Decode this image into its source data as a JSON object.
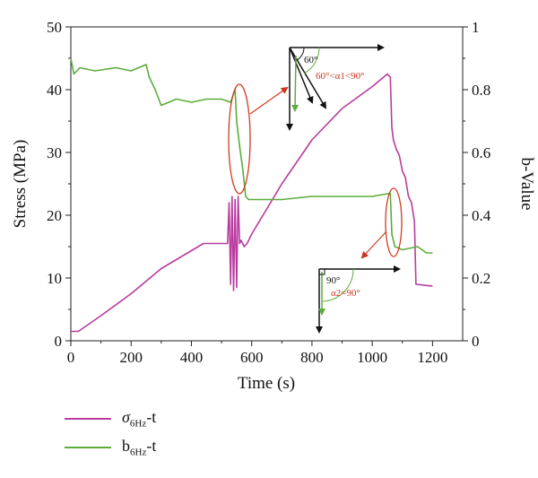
{
  "chart_data": {
    "type": "line",
    "title": "",
    "xlabel": "Time (s)",
    "ylabel_left": "Stress (MPa)",
    "ylabel_right": "b-Value",
    "xlim": [
      0,
      1300
    ],
    "ylim_left": [
      0,
      50
    ],
    "ylim_right": [
      0,
      1
    ],
    "xticks": [
      "0",
      "200",
      "400",
      "600",
      "800",
      "1000",
      "1200"
    ],
    "yticks_left": [
      "0",
      "10",
      "20",
      "30",
      "40",
      "50"
    ],
    "yticks_right": [
      "0",
      "0.2",
      "0.4",
      "0.6",
      "0.8",
      "1"
    ],
    "grid": false,
    "legend_position": "bottom-left",
    "series": [
      {
        "name": "σ6Hz-t",
        "axis": "left",
        "color": "#b83c9f",
        "x": [
          0,
          25,
          100,
          200,
          300,
          440,
          520,
          525,
          530,
          535,
          540,
          545,
          550,
          555,
          560,
          565,
          575,
          585,
          600,
          700,
          800,
          900,
          1000,
          1050,
          1060,
          1065,
          1070,
          1080,
          1090,
          1100,
          1110,
          1120,
          1130,
          1140,
          1145,
          1200
        ],
        "values": [
          1.5,
          1.5,
          4.0,
          7.5,
          11.5,
          15.5,
          15.5,
          22.0,
          9.0,
          23.0,
          8.0,
          22.5,
          8.5,
          23.0,
          15.5,
          16.0,
          15.0,
          15.5,
          17.0,
          25.0,
          32.0,
          37.0,
          40.5,
          42.5,
          42.0,
          34.0,
          32.0,
          30.5,
          29.5,
          27.0,
          26.0,
          23.0,
          22.0,
          19.0,
          9.0,
          8.7
        ]
      },
      {
        "name": "b6Hz-t",
        "axis": "right",
        "color": "#5aad3c",
        "x": [
          0,
          10,
          30,
          80,
          150,
          200,
          250,
          260,
          280,
          300,
          350,
          400,
          450,
          500,
          530,
          545,
          550,
          560,
          570,
          580,
          590,
          600,
          700,
          800,
          900,
          1000,
          1060,
          1065,
          1075,
          1100,
          1150,
          1180,
          1200
        ],
        "values": [
          0.9,
          0.85,
          0.87,
          0.86,
          0.87,
          0.86,
          0.88,
          0.84,
          0.8,
          0.75,
          0.77,
          0.76,
          0.77,
          0.77,
          0.76,
          0.8,
          0.7,
          0.62,
          0.55,
          0.46,
          0.45,
          0.45,
          0.45,
          0.46,
          0.46,
          0.46,
          0.47,
          0.34,
          0.3,
          0.29,
          0.3,
          0.28,
          0.28
        ]
      }
    ],
    "annotations": [
      {
        "angle_label": "60°",
        "range_label": "60°<α1<90°"
      },
      {
        "angle_label": "90°",
        "range_label": "α2=90°"
      }
    ]
  },
  "legend": {
    "stress_main": "σ",
    "stress_sub": "6Hz",
    "stress_suffix": "-t",
    "b_main": "b",
    "b_sub": "6Hz",
    "b_suffix": "-t"
  }
}
